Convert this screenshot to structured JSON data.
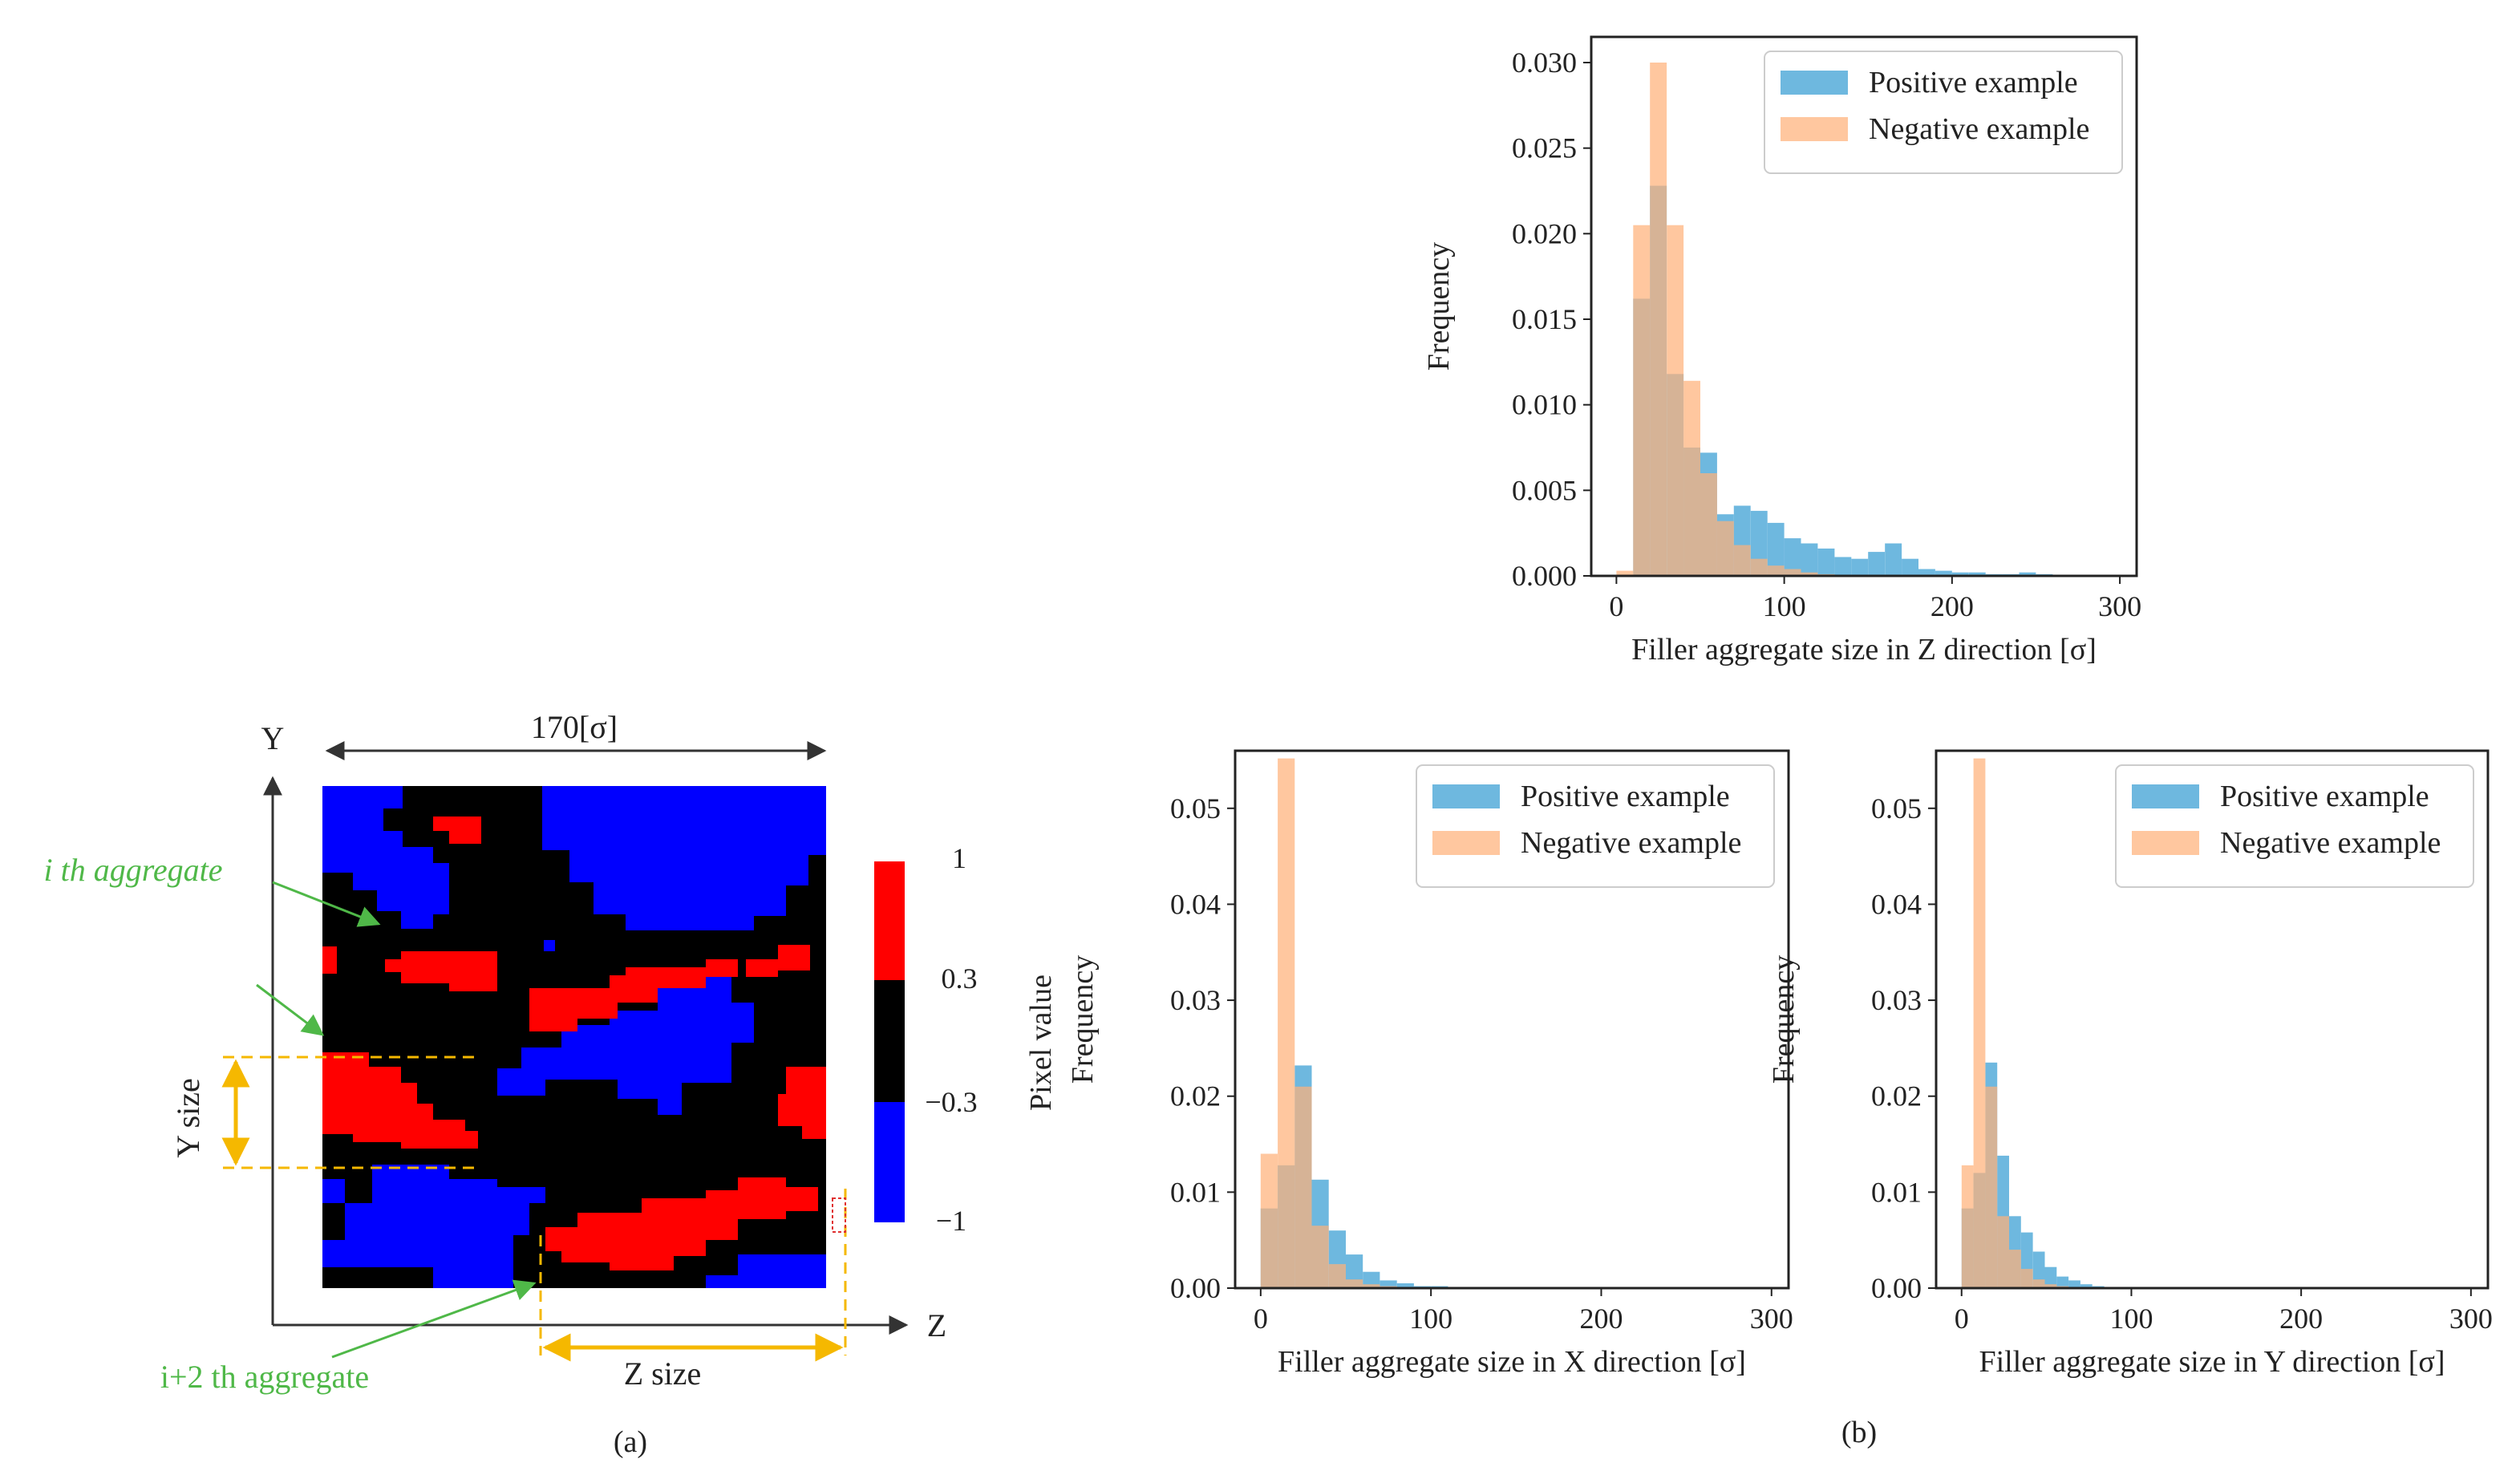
{
  "panel_a": {
    "caption": "(a)",
    "width_label": "170[σ]",
    "y_axis": "Y",
    "z_axis": "Z",
    "y_size_label": "Y size",
    "z_size_label": "Z size",
    "ann_i": "i th aggregate",
    "ann_i2": "i+2 th aggregate",
    "colorbar_label": "Pixel value",
    "colorbar_ticks": [
      "1",
      "0.3",
      "−0.3",
      "−1"
    ],
    "colors": {
      "positive": "#ff0000",
      "neutral": "#000000",
      "negative": "#0000ff",
      "annotation": "#4fb848",
      "dim": "#f5b800"
    }
  },
  "panel_b": {
    "caption": "(b)"
  },
  "chart_data": [
    {
      "id": "hist_z",
      "type": "bar",
      "xlabel": "Filler aggregate size in Z direction [σ]",
      "ylabel": "Frequency",
      "xlim": [
        -15,
        310
      ],
      "ylim": [
        0,
        0.0315
      ],
      "xticks": [
        "0",
        "100",
        "200",
        "300"
      ],
      "yticks": [
        "0.000",
        "0.005",
        "0.010",
        "0.015",
        "0.020",
        "0.025",
        "0.030"
      ],
      "legend": [
        "Positive example",
        "Negative example"
      ],
      "legend_position": "top-right",
      "bin_start": 0,
      "bin_width": 10,
      "series": [
        {
          "name": "Positive example",
          "color": "#5eb0dc",
          "values": [
            0.0,
            0.0162,
            0.0228,
            0.0118,
            0.0075,
            0.0072,
            0.0036,
            0.0041,
            0.0038,
            0.0031,
            0.0022,
            0.0019,
            0.0016,
            0.0011,
            0.001,
            0.0014,
            0.0019,
            0.001,
            0.0004,
            0.0003,
            0.0002,
            0.0002,
            0.0001,
            0.0001,
            0.0002,
            0.0001,
            0.0,
            0.0,
            0.0,
            0.0
          ]
        },
        {
          "name": "Negative example",
          "color": "#ffb27a",
          "values": [
            0.0003,
            0.0205,
            0.03,
            0.0205,
            0.0114,
            0.006,
            0.0032,
            0.0018,
            0.001,
            0.0006,
            0.0004,
            0.0002,
            0.0001,
            0.0,
            0.0,
            0.0,
            0.0,
            0.0,
            0.0,
            0.0,
            0.0,
            0.0,
            0.0,
            0.0,
            0.0,
            0.0,
            0.0,
            0.0,
            0.0,
            0.0
          ]
        }
      ]
    },
    {
      "id": "hist_x",
      "type": "bar",
      "xlabel": "Filler aggregate size in X direction [σ]",
      "ylabel": "Frequency",
      "xlim": [
        -15,
        310
      ],
      "ylim": [
        0,
        0.056
      ],
      "xticks": [
        "0",
        "100",
        "200",
        "300"
      ],
      "yticks": [
        "0.00",
        "0.01",
        "0.02",
        "0.03",
        "0.04",
        "0.05"
      ],
      "legend": [
        "Positive example",
        "Negative example"
      ],
      "legend_position": "top-right",
      "bin_start": 0,
      "bin_width": 10,
      "series": [
        {
          "name": "Positive example",
          "color": "#5eb0dc",
          "values": [
            0.0083,
            0.0128,
            0.0232,
            0.0113,
            0.006,
            0.0035,
            0.0017,
            0.0008,
            0.0005,
            0.0002,
            0.0002,
            0.0001,
            0.0,
            0.0,
            0.0,
            0.0,
            0.0,
            0.0,
            0.0,
            0.0,
            0.0,
            0.0,
            0.0,
            0.0,
            0.0,
            0.0,
            0.0,
            0.0,
            0.0,
            0.0
          ]
        },
        {
          "name": "Negative example",
          "color": "#ffb27a",
          "values": [
            0.014,
            0.0552,
            0.021,
            0.0065,
            0.0025,
            0.0009,
            0.0004,
            0.0002,
            0.0001,
            0.0,
            0.0,
            0.0,
            0.0,
            0.0,
            0.0,
            0.0,
            0.0,
            0.0,
            0.0,
            0.0,
            0.0,
            0.0,
            0.0,
            0.0,
            0.0,
            0.0,
            0.0,
            0.0,
            0.0,
            0.0
          ]
        }
      ]
    },
    {
      "id": "hist_y",
      "type": "bar",
      "xlabel": "Filler aggregate size in Y direction [σ]",
      "ylabel": "Frequency",
      "xlim": [
        -15,
        310
      ],
      "ylim": [
        0,
        0.056
      ],
      "xticks": [
        "0",
        "100",
        "200",
        "300"
      ],
      "yticks": [
        "0.00",
        "0.01",
        "0.02",
        "0.03",
        "0.04",
        "0.05"
      ],
      "legend": [
        "Positive example",
        "Negative example"
      ],
      "legend_position": "top-right",
      "bin_start": 0,
      "bin_width": 7,
      "series": [
        {
          "name": "Positive example",
          "color": "#5eb0dc",
          "values": [
            0.0083,
            0.012,
            0.0235,
            0.0138,
            0.0075,
            0.0058,
            0.0038,
            0.0022,
            0.0012,
            0.0008,
            0.0004,
            0.0002,
            0.0001,
            0.0,
            0.0,
            0.0,
            0.0,
            0.0,
            0.0,
            0.0
          ]
        },
        {
          "name": "Negative example",
          "color": "#ffb27a",
          "values": [
            0.0128,
            0.0552,
            0.021,
            0.0075,
            0.004,
            0.002,
            0.0009,
            0.0004,
            0.0002,
            0.0001,
            0.0,
            0.0,
            0.0,
            0.0,
            0.0,
            0.0,
            0.0,
            0.0,
            0.0,
            0.0
          ]
        }
      ]
    }
  ]
}
